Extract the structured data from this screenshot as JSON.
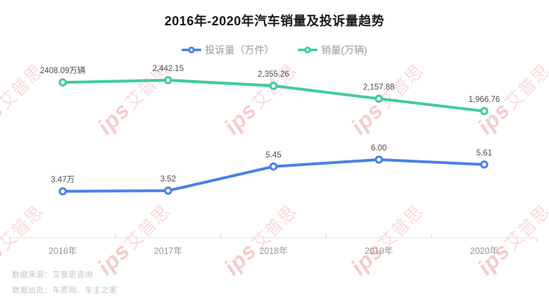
{
  "title": "2016年-2020年汽车销量及投诉量趋势",
  "legend": [
    {
      "label": "投诉量（万件）",
      "color": "#4b80e8",
      "key": "complaints"
    },
    {
      "label": "销量(万辆)",
      "color": "#40cb9e",
      "key": "sales"
    }
  ],
  "chart_data": {
    "type": "line",
    "categories": [
      "2016年",
      "2017年",
      "2018年",
      "2019年",
      "2020年"
    ],
    "series": [
      {
        "name": "投诉量（万件）",
        "key": "complaints",
        "color": "#4b80e8",
        "values": [
          3.47,
          3.52,
          5.45,
          6.0,
          5.61
        ],
        "labels": [
          "3.47万",
          "3.52",
          "5.45",
          "6.00",
          "5.61"
        ]
      },
      {
        "name": "销量(万辆)",
        "key": "sales",
        "color": "#40cb9e",
        "values": [
          2408.09,
          2442.15,
          2355.26,
          2157.88,
          1966.76
        ],
        "labels": [
          "2408.09万辆",
          "2,442.15",
          "2,355.26",
          "2,157.88",
          "1,966.76"
        ]
      }
    ],
    "title": "2016年-2020年汽车销量及投诉量趋势",
    "xlabel": "",
    "ylabel": "",
    "legend_position": "top",
    "grid": false,
    "y_axes_shown": false,
    "marker": "open-circle",
    "point_labels_shown": true
  },
  "footer": {
    "source_line": "数据来源：艾普思咨询",
    "origin_line": "数据出处：车质网、车主之家"
  },
  "watermark": {
    "logo": "ips",
    "text": "艾普思"
  }
}
